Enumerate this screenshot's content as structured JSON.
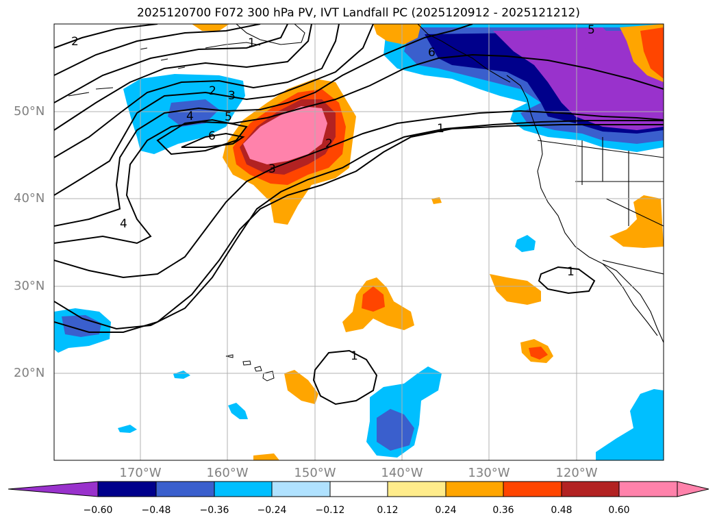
{
  "title": "2025120700 F072 300 hPa PV, IVT Landfall PC (2025120912 - 2025121212)",
  "lat_labels": [
    "50°N",
    "40°N",
    "30°N",
    "20°N"
  ],
  "lon_labels": [
    "170°W",
    "160°W",
    "150°W",
    "140°W",
    "130°W",
    "120°W"
  ],
  "contour_labels": [
    "2",
    "1",
    "5",
    "2",
    "3",
    "4",
    "5",
    "6",
    "6",
    "1",
    "2",
    "3",
    "4",
    "1",
    "1"
  ],
  "colorbar": {
    "tick_labels": [
      "−0.60",
      "−0.48",
      "−0.36",
      "−0.24",
      "−0.12",
      "0.12",
      "0.24",
      "0.36",
      "0.48",
      "0.60"
    ],
    "colors": [
      "#9932cc",
      "#00008b",
      "#3a5fcd",
      "#00bfff",
      "#b0e2ff",
      "#ffffff",
      "#ffec8b",
      "#ffa500",
      "#ff4500",
      "#b22222",
      "#ff82ab",
      "#ff82ab"
    ]
  }
}
